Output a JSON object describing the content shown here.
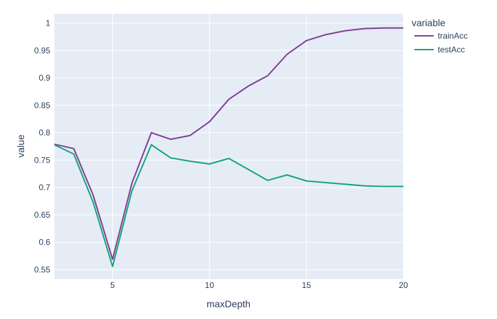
{
  "chart_data": {
    "type": "line",
    "xlabel": "maxDepth",
    "ylabel": "value",
    "xlim": [
      2,
      20
    ],
    "ylim": [
      0.533,
      1.017
    ],
    "x_ticks": [
      5,
      10,
      15,
      20
    ],
    "y_ticks": [
      0.55,
      0.6,
      0.65,
      0.7,
      0.75,
      0.8,
      0.85,
      0.9,
      0.95,
      1
    ],
    "grid": true,
    "legend": {
      "title": "variable",
      "placement": "top-right"
    },
    "x": [
      2,
      3,
      4,
      5,
      6,
      7,
      8,
      9,
      10,
      11,
      12,
      13,
      14,
      15,
      16,
      17,
      18,
      19,
      20
    ],
    "series": [
      {
        "name": "trainAcc",
        "color": "#7e3f8f",
        "values": [
          0.779,
          0.771,
          0.686,
          0.569,
          0.708,
          0.8,
          0.788,
          0.795,
          0.82,
          0.861,
          0.885,
          0.904,
          0.943,
          0.968,
          0.979,
          0.986,
          0.99,
          0.991,
          0.991
        ]
      },
      {
        "name": "testAcc",
        "color": "#12a37e",
        "values": [
          0.778,
          0.761,
          0.673,
          0.556,
          0.694,
          0.778,
          0.754,
          0.748,
          0.743,
          0.753,
          0.733,
          0.713,
          0.723,
          0.712,
          0.709,
          0.706,
          0.703,
          0.702,
          0.702
        ]
      }
    ]
  },
  "colors": {
    "plot_background": "#e5ecf6",
    "grid": "#ffffff",
    "text": "#2a3f5f"
  }
}
